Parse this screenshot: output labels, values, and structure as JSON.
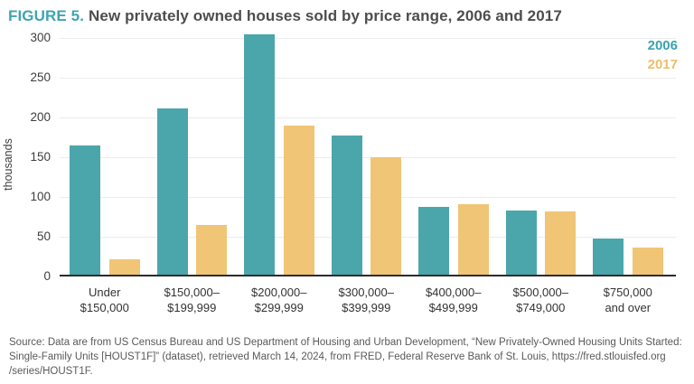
{
  "title": {
    "figure_label": "FIGURE 5.",
    "text": "New privately owned houses sold by price range, 2006 and 2017"
  },
  "chart_data": {
    "type": "bar",
    "title": "New privately owned houses sold by price range, 2006 and 2017",
    "ylabel": "thousands",
    "xlabel": "",
    "ylim": [
      0,
      300
    ],
    "yticks": [
      0,
      50,
      100,
      150,
      200,
      250,
      300
    ],
    "grid": "horizontal",
    "legend_position": "top-right",
    "categories": [
      {
        "line1": "Under",
        "line2": "$150,000"
      },
      {
        "line1": "$150,000–",
        "line2": "$199,999"
      },
      {
        "line1": "$200,000–",
        "line2": "$299,999"
      },
      {
        "line1": "$300,000–",
        "line2": "$399,999"
      },
      {
        "line1": "$400,000–",
        "line2": "$499,999"
      },
      {
        "line1": "$500,000–",
        "line2": "$749,000"
      },
      {
        "line1": "$750,000",
        "line2": "and over"
      }
    ],
    "series": [
      {
        "name": "2006",
        "color": "#4ba6ac",
        "values": [
          163,
          209,
          302,
          175,
          85,
          81,
          45
        ]
      },
      {
        "name": "2017",
        "color": "#f0c575",
        "values": [
          19,
          63,
          187,
          148,
          89,
          80,
          34
        ]
      }
    ]
  },
  "source": {
    "lines": [
      "Source: Data are from US Census Bureau and US Department of Housing and Urban Development, “New Privately-Owned Housing Units Started:",
      "Single-Family Units [HOUST1F]” (dataset), retrieved March 14, 2024, from FRED, Federal Reserve Bank of St. Louis, https://fred.stlouisfed.org",
      "/series/HOUST1F."
    ]
  },
  "colors": {
    "accent_teal": "#3fa4b1",
    "accent_yellow": "#f0c575",
    "title_text": "#4d4d4d",
    "axis_text": "#3d3d3d",
    "gridline": "#ececec",
    "baseline": "#2b2b2b",
    "source_text": "#58595b"
  }
}
